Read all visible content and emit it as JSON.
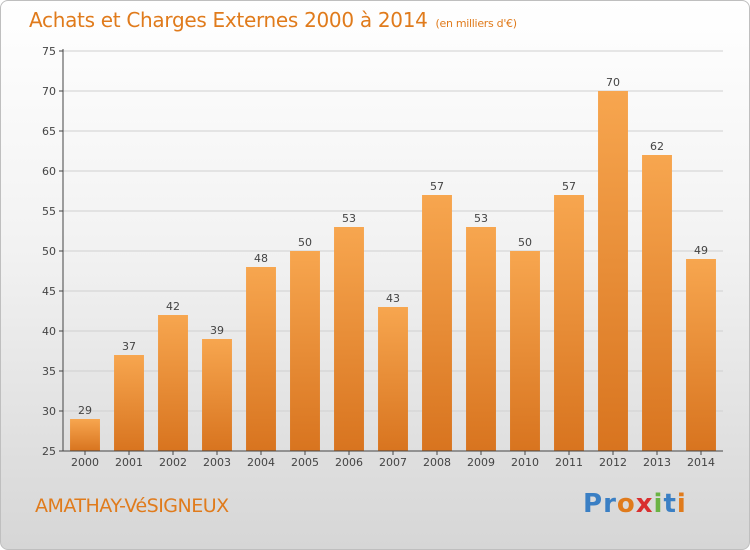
{
  "header": {
    "title": "Achats et Charges Externes 2000 à 2014",
    "unit": "(en milliers d'€)"
  },
  "footer": {
    "commune": "AMATHAY-VéSIGNEUX",
    "logo_letters": [
      {
        "ch": "P",
        "color": "#3a7fc4"
      },
      {
        "ch": "r",
        "color": "#3a7fc4"
      },
      {
        "ch": "o",
        "color": "#e07b1c"
      },
      {
        "ch": "x",
        "color": "#d92f2f"
      },
      {
        "ch": "i",
        "color": "#6ab344"
      },
      {
        "ch": "t",
        "color": "#3a7fc4"
      },
      {
        "ch": "i",
        "color": "#e07b1c"
      }
    ]
  },
  "colors": {
    "bar_top": "#f7a64f",
    "bar_bottom": "#d8741f",
    "axis": "#444444",
    "grid": "#d0d0d0",
    "text": "#444444"
  },
  "chart_data": {
    "type": "bar",
    "categories": [
      "2000",
      "2001",
      "2002",
      "2003",
      "2004",
      "2005",
      "2006",
      "2007",
      "2008",
      "2009",
      "2010",
      "2011",
      "2012",
      "2013",
      "2014"
    ],
    "values": [
      29,
      37,
      42,
      39,
      48,
      50,
      53,
      43,
      57,
      53,
      50,
      57,
      70,
      62,
      49
    ],
    "ylim": [
      25,
      75
    ],
    "yticks": [
      25,
      30,
      35,
      40,
      45,
      50,
      55,
      60,
      65,
      70,
      75
    ],
    "grid": true,
    "title": "Achats et Charges Externes 2000 à 2014",
    "xlabel": "",
    "ylabel": ""
  }
}
